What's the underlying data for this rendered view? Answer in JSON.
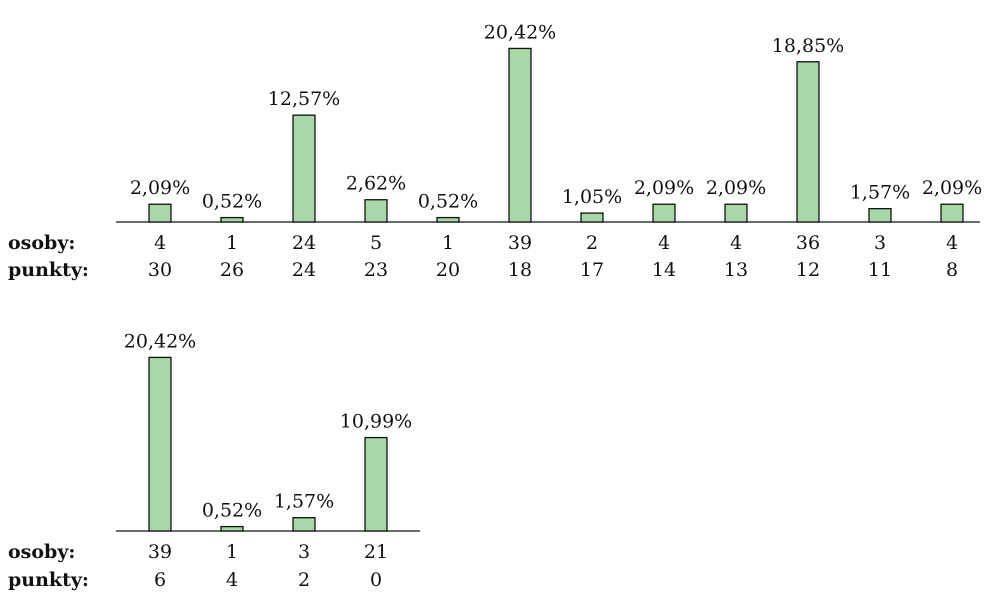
{
  "colors": {
    "bar_fill": "#a8d8a8",
    "bar_stroke": "#111111"
  },
  "row_labels": {
    "osoby": "osoby:",
    "punkty": "punkty:"
  },
  "chart_data": [
    {
      "type": "bar",
      "percent_labels": [
        "2,09%",
        "0,52%",
        "12,57%",
        "2,62%",
        "0,52%",
        "20,42%",
        "1,05%",
        "2,09%",
        "2,09%",
        "18,85%",
        "1,57%",
        "2,09%"
      ],
      "values": [
        2.09,
        0.52,
        12.57,
        2.62,
        0.52,
        20.42,
        1.05,
        2.09,
        2.09,
        18.85,
        1.57,
        2.09
      ],
      "osoby": [
        "4",
        "1",
        "24",
        "5",
        "1",
        "39",
        "2",
        "4",
        "4",
        "36",
        "3",
        "4"
      ],
      "punkty": [
        "30",
        "26",
        "24",
        "23",
        "20",
        "18",
        "17",
        "14",
        "13",
        "12",
        "11",
        "8"
      ]
    },
    {
      "type": "bar",
      "percent_labels": [
        "20,42%",
        "0,52%",
        "1,57%",
        "10,99%"
      ],
      "values": [
        20.42,
        0.52,
        1.57,
        10.99
      ],
      "osoby": [
        "39",
        "1",
        "3",
        "21"
      ],
      "punkty": [
        "6",
        "4",
        "2",
        "0"
      ]
    }
  ]
}
